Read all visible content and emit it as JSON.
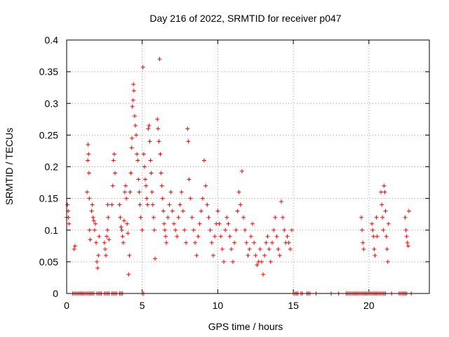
{
  "chart_data": {
    "type": "scatter",
    "title": "Day 216 of 2022, SRMTID for receiver p047",
    "xlabel": "GPS time / hours",
    "ylabel": "SRMTID / TECUs",
    "xlim": [
      0,
      24
    ],
    "ylim": [
      0,
      0.4
    ],
    "x_ticks": [
      0,
      5,
      10,
      15,
      20
    ],
    "y_ticks": [
      0,
      0.05,
      0.1,
      0.15,
      0.2,
      0.25,
      0.3,
      0.35,
      0.4
    ],
    "x_tick_labels": [
      "0",
      "5",
      "10",
      "15",
      "20"
    ],
    "y_tick_labels": [
      "0",
      "0.05",
      "0.1",
      "0.15",
      "0.2",
      "0.25",
      "0.3",
      "0.35",
      "0.4"
    ],
    "grid": true,
    "marker": "plus",
    "color": "#ff0000",
    "series": [
      {
        "name": "SRMTID",
        "points": [
          [
            0.0,
            0.12
          ],
          [
            0.05,
            0.14
          ],
          [
            0.1,
            0.13
          ],
          [
            0.12,
            0.12
          ],
          [
            0.15,
            0.11
          ],
          [
            0.5,
            0.07
          ],
          [
            0.55,
            0.075
          ],
          [
            1.35,
            0.16
          ],
          [
            1.4,
            0.21
          ],
          [
            1.42,
            0.235
          ],
          [
            1.45,
            0.22
          ],
          [
            1.48,
            0.19
          ],
          [
            1.5,
            0.15
          ],
          [
            1.52,
            0.1
          ],
          [
            1.55,
            0.085
          ],
          [
            1.65,
            0.13
          ],
          [
            1.7,
            0.14
          ],
          [
            1.75,
            0.12
          ],
          [
            1.8,
            0.115
          ],
          [
            1.85,
            0.1
          ],
          [
            1.9,
            0.11
          ],
          [
            1.95,
            0.08
          ],
          [
            2.0,
            0.05
          ],
          [
            2.05,
            0.04
          ],
          [
            2.1,
            0.06
          ],
          [
            2.15,
            0.09
          ],
          [
            2.5,
            0.08
          ],
          [
            2.55,
            0.07
          ],
          [
            2.6,
            0.06
          ],
          [
            2.65,
            0.09
          ],
          [
            2.7,
            0.1
          ],
          [
            2.72,
            0.14
          ],
          [
            2.75,
            0.12
          ],
          [
            2.8,
            0.085
          ],
          [
            3.0,
            0.14
          ],
          [
            3.05,
            0.17
          ],
          [
            3.1,
            0.21
          ],
          [
            3.15,
            0.22
          ],
          [
            3.2,
            0.19
          ],
          [
            3.5,
            0.14
          ],
          [
            3.55,
            0.12
          ],
          [
            3.6,
            0.105
          ],
          [
            3.65,
            0.1
          ],
          [
            3.7,
            0.09
          ],
          [
            3.75,
            0.08
          ],
          [
            3.8,
            0.115
          ],
          [
            3.85,
            0.16
          ],
          [
            3.9,
            0.17
          ],
          [
            3.95,
            0.15
          ],
          [
            4.0,
            0.11
          ],
          [
            4.05,
            0.095
          ],
          [
            4.1,
            0.03
          ],
          [
            4.15,
            0.06
          ],
          [
            4.2,
            0.16
          ],
          [
            4.25,
            0.19
          ],
          [
            4.3,
            0.23
          ],
          [
            4.32,
            0.245
          ],
          [
            4.35,
            0.295
          ],
          [
            4.4,
            0.305
          ],
          [
            4.42,
            0.33
          ],
          [
            4.45,
            0.32
          ],
          [
            4.5,
            0.28
          ],
          [
            4.55,
            0.265
          ],
          [
            4.6,
            0.25
          ],
          [
            4.65,
            0.22
          ],
          [
            4.7,
            0.21
          ],
          [
            4.75,
            0.18
          ],
          [
            4.8,
            0.16
          ],
          [
            4.85,
            0.14
          ],
          [
            4.9,
            0.12
          ],
          [
            5.0,
            0.1
          ],
          [
            5.05,
            0.357
          ],
          [
            5.1,
            0.22
          ],
          [
            5.15,
            0.2
          ],
          [
            5.2,
            0.18
          ],
          [
            5.25,
            0.17
          ],
          [
            5.3,
            0.15
          ],
          [
            5.35,
            0.14
          ],
          [
            5.4,
            0.26
          ],
          [
            5.45,
            0.265
          ],
          [
            5.5,
            0.24
          ],
          [
            5.55,
            0.21
          ],
          [
            5.6,
            0.19
          ],
          [
            5.65,
            0.16
          ],
          [
            5.7,
            0.14
          ],
          [
            5.75,
            0.12
          ],
          [
            5.8,
            0.1
          ],
          [
            5.85,
            0.055
          ],
          [
            6.0,
            0.275
          ],
          [
            6.05,
            0.26
          ],
          [
            6.1,
            0.24
          ],
          [
            6.15,
            0.37
          ],
          [
            6.2,
            0.22
          ],
          [
            6.25,
            0.19
          ],
          [
            6.3,
            0.17
          ],
          [
            6.35,
            0.15
          ],
          [
            6.4,
            0.13
          ],
          [
            6.45,
            0.11
          ],
          [
            6.5,
            0.1
          ],
          [
            6.55,
            0.09
          ],
          [
            6.6,
            0.08
          ],
          [
            6.7,
            0.12
          ],
          [
            6.8,
            0.14
          ],
          [
            6.9,
            0.16
          ],
          [
            7.0,
            0.13
          ],
          [
            7.1,
            0.11
          ],
          [
            7.2,
            0.1
          ],
          [
            7.3,
            0.09
          ],
          [
            7.4,
            0.12
          ],
          [
            7.5,
            0.14
          ],
          [
            7.6,
            0.16
          ],
          [
            7.7,
            0.13
          ],
          [
            7.8,
            0.1
          ],
          [
            7.9,
            0.08
          ],
          [
            8.0,
            0.26
          ],
          [
            8.05,
            0.24
          ],
          [
            8.1,
            0.18
          ],
          [
            8.2,
            0.15
          ],
          [
            8.3,
            0.12
          ],
          [
            8.4,
            0.1
          ],
          [
            8.5,
            0.08
          ],
          [
            8.6,
            0.06
          ],
          [
            8.7,
            0.09
          ],
          [
            8.8,
            0.11
          ],
          [
            8.9,
            0.13
          ],
          [
            9.0,
            0.15
          ],
          [
            9.1,
            0.21
          ],
          [
            9.2,
            0.17
          ],
          [
            9.3,
            0.14
          ],
          [
            9.4,
            0.12
          ],
          [
            9.5,
            0.1
          ],
          [
            9.6,
            0.08
          ],
          [
            9.7,
            0.06
          ],
          [
            9.8,
            0.09
          ],
          [
            9.9,
            0.11
          ],
          [
            10.0,
            0.13
          ],
          [
            10.1,
            0.11
          ],
          [
            10.2,
            0.09
          ],
          [
            10.3,
            0.07
          ],
          [
            10.4,
            0.05
          ],
          [
            10.5,
            0.1
          ],
          [
            10.6,
            0.12
          ],
          [
            10.7,
            0.11
          ],
          [
            10.8,
            0.09
          ],
          [
            10.9,
            0.07
          ],
          [
            11.0,
            0.05
          ],
          [
            11.1,
            0.08
          ],
          [
            11.2,
            0.1
          ],
          [
            11.3,
            0.13
          ],
          [
            11.4,
            0.16
          ],
          [
            11.5,
            0.14
          ],
          [
            11.6,
            0.193
          ],
          [
            11.7,
            0.12
          ],
          [
            11.8,
            0.1
          ],
          [
            11.9,
            0.08
          ],
          [
            12.0,
            0.06
          ],
          [
            12.1,
            0.07
          ],
          [
            12.2,
            0.09
          ],
          [
            12.3,
            0.11
          ],
          [
            12.4,
            0.08
          ],
          [
            12.5,
            0.06
          ],
          [
            12.6,
            0.045
          ],
          [
            12.7,
            0.05
          ],
          [
            12.8,
            0.07
          ],
          [
            12.9,
            0.05
          ],
          [
            13.0,
            0.03
          ],
          [
            13.1,
            0.06
          ],
          [
            13.2,
            0.08
          ],
          [
            13.3,
            0.09
          ],
          [
            13.4,
            0.07
          ],
          [
            13.5,
            0.05
          ],
          [
            13.6,
            0.08
          ],
          [
            13.7,
            0.1
          ],
          [
            13.8,
            0.12
          ],
          [
            13.9,
            0.09
          ],
          [
            14.0,
            0.07
          ],
          [
            14.1,
            0.06
          ],
          [
            14.2,
            0.145
          ],
          [
            14.3,
            0.12
          ],
          [
            14.4,
            0.1
          ],
          [
            14.5,
            0.08
          ],
          [
            14.6,
            0.09
          ],
          [
            14.7,
            0.08
          ],
          [
            14.8,
            0.07
          ],
          [
            14.9,
            0.1
          ],
          [
            19.5,
            0.12
          ],
          [
            19.55,
            0.1
          ],
          [
            19.6,
            0.08
          ],
          [
            19.65,
            0.07
          ],
          [
            20.2,
            0.11
          ],
          [
            20.25,
            0.1
          ],
          [
            20.3,
            0.09
          ],
          [
            20.35,
            0.07
          ],
          [
            20.4,
            0.06
          ],
          [
            20.5,
            0.12
          ],
          [
            20.55,
            0.09
          ],
          [
            20.8,
            0.16
          ],
          [
            20.85,
            0.14
          ],
          [
            20.9,
            0.12
          ],
          [
            20.95,
            0.1
          ],
          [
            21.0,
            0.17
          ],
          [
            21.05,
            0.16
          ],
          [
            21.1,
            0.13
          ],
          [
            21.15,
            0.09
          ],
          [
            21.2,
            0.07
          ],
          [
            21.25,
            0.05
          ],
          [
            21.3,
            0.11
          ],
          [
            22.4,
            0.12
          ],
          [
            22.45,
            0.1
          ],
          [
            22.5,
            0.09
          ],
          [
            22.55,
            0.08
          ],
          [
            22.6,
            0.075
          ],
          [
            22.65,
            0.13
          ]
        ]
      }
    ]
  },
  "zero_points": {
    "x": [
      0.4,
      0.5,
      0.6,
      0.7,
      0.8,
      0.9,
      1.0,
      1.1,
      1.2,
      1.3,
      1.4,
      1.5,
      1.6,
      1.7,
      1.8,
      2.0,
      2.1,
      2.2,
      2.3,
      2.5,
      2.6,
      2.7,
      2.8,
      3.0,
      3.1,
      3.2,
      3.3,
      3.5,
      3.6,
      3.7,
      5.0,
      5.1,
      15.0,
      15.1,
      15.2,
      15.3,
      15.5,
      15.6,
      15.9,
      16.0,
      16.1,
      16.5,
      17.5,
      18.0,
      18.5,
      18.6,
      18.7,
      18.8,
      18.9,
      19.0,
      19.1,
      19.2,
      19.3,
      19.4,
      19.5,
      19.6,
      19.7,
      19.8,
      19.9,
      20.0,
      20.1,
      20.2,
      20.3,
      20.4,
      20.5,
      20.6,
      20.7,
      20.8,
      20.9,
      21.0,
      21.1,
      21.5,
      22.0,
      22.1,
      22.2,
      22.3,
      22.4,
      22.5,
      22.8
    ]
  }
}
